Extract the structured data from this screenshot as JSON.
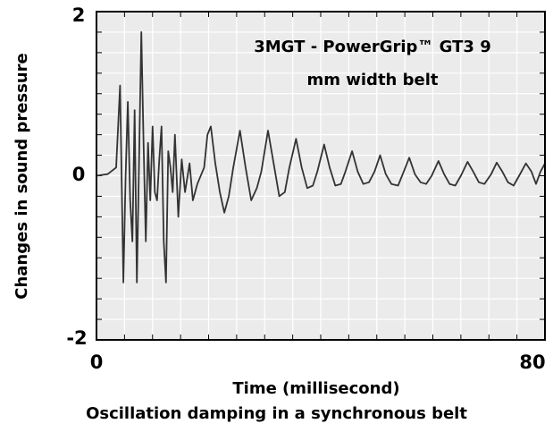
{
  "caption": "Oscillation damping in a synchronous belt",
  "chart_data": {
    "type": "line",
    "title": "",
    "annotation_lines": [
      "3MGT - PowerGrip™ GT3 9",
      "mm width belt"
    ],
    "xlabel": "Time (millisecond)",
    "ylabel": "Changes in sound pressure",
    "xlim": [
      0,
      80
    ],
    "ylim": [
      -2,
      2
    ],
    "x_tick_labels": [
      "0",
      "80"
    ],
    "y_tick_labels": [
      "2",
      "0",
      "-2"
    ],
    "grid": true,
    "series": [
      {
        "color": "#333333",
        "points": [
          [
            0,
            0
          ],
          [
            2,
            0.02
          ],
          [
            3.5,
            0.1
          ],
          [
            4.2,
            1.1
          ],
          [
            4.8,
            -1.3
          ],
          [
            5.2,
            0.0
          ],
          [
            5.6,
            0.9
          ],
          [
            6.0,
            -0.3
          ],
          [
            6.4,
            -0.8
          ],
          [
            6.8,
            0.8
          ],
          [
            7.2,
            -1.3
          ],
          [
            7.6,
            0.2
          ],
          [
            8.0,
            1.75
          ],
          [
            8.4,
            0.4
          ],
          [
            8.8,
            -0.8
          ],
          [
            9.2,
            0.4
          ],
          [
            9.6,
            -0.3
          ],
          [
            10.0,
            0.6
          ],
          [
            10.4,
            -0.2
          ],
          [
            10.8,
            -0.3
          ],
          [
            11.2,
            0.2
          ],
          [
            11.6,
            0.6
          ],
          [
            12.0,
            -0.8
          ],
          [
            12.4,
            -1.3
          ],
          [
            12.8,
            0.3
          ],
          [
            13.2,
            0.1
          ],
          [
            13.6,
            -0.2
          ],
          [
            14.0,
            0.5
          ],
          [
            14.6,
            -0.5
          ],
          [
            15.2,
            0.2
          ],
          [
            15.8,
            -0.2
          ],
          [
            16.6,
            0.15
          ],
          [
            17.2,
            -0.3
          ],
          [
            18.0,
            -0.1
          ],
          [
            19.2,
            0.1
          ],
          [
            19.8,
            0.5
          ],
          [
            20.4,
            0.6
          ],
          [
            21.2,
            0.15
          ],
          [
            22.0,
            -0.2
          ],
          [
            22.8,
            -0.45
          ],
          [
            23.6,
            -0.25
          ],
          [
            24.4,
            0.1
          ],
          [
            25.6,
            0.55
          ],
          [
            26.6,
            0.1
          ],
          [
            27.6,
            -0.3
          ],
          [
            28.6,
            -0.15
          ],
          [
            29.4,
            0.05
          ],
          [
            30.6,
            0.55
          ],
          [
            31.6,
            0.15
          ],
          [
            32.6,
            -0.25
          ],
          [
            33.6,
            -0.2
          ],
          [
            34.4,
            0.1
          ],
          [
            35.6,
            0.45
          ],
          [
            36.6,
            0.1
          ],
          [
            37.6,
            -0.15
          ],
          [
            38.6,
            -0.12
          ],
          [
            39.4,
            0.05
          ],
          [
            40.6,
            0.38
          ],
          [
            41.6,
            0.1
          ],
          [
            42.6,
            -0.12
          ],
          [
            43.6,
            -0.1
          ],
          [
            44.4,
            0.05
          ],
          [
            45.6,
            0.3
          ],
          [
            46.6,
            0.05
          ],
          [
            47.6,
            -0.1
          ],
          [
            48.6,
            -0.08
          ],
          [
            49.6,
            0.05
          ],
          [
            50.6,
            0.25
          ],
          [
            51.6,
            0.02
          ],
          [
            52.6,
            -0.1
          ],
          [
            53.8,
            -0.12
          ],
          [
            54.8,
            0.05
          ],
          [
            55.8,
            0.22
          ],
          [
            56.8,
            0.02
          ],
          [
            57.8,
            -0.08
          ],
          [
            58.8,
            -0.1
          ],
          [
            59.8,
            0.0
          ],
          [
            61.0,
            0.18
          ],
          [
            62.0,
            0.02
          ],
          [
            63.0,
            -0.1
          ],
          [
            64.0,
            -0.12
          ],
          [
            65.0,
            0.0
          ],
          [
            66.2,
            0.17
          ],
          [
            67.2,
            0.05
          ],
          [
            68.2,
            -0.08
          ],
          [
            69.2,
            -0.1
          ],
          [
            70.4,
            0.02
          ],
          [
            71.4,
            0.16
          ],
          [
            72.4,
            0.05
          ],
          [
            73.4,
            -0.08
          ],
          [
            74.4,
            -0.12
          ],
          [
            75.4,
            0.0
          ],
          [
            76.6,
            0.15
          ],
          [
            77.6,
            0.05
          ],
          [
            78.4,
            -0.1
          ],
          [
            79.2,
            0.05
          ],
          [
            80,
            0.15
          ]
        ]
      }
    ]
  }
}
